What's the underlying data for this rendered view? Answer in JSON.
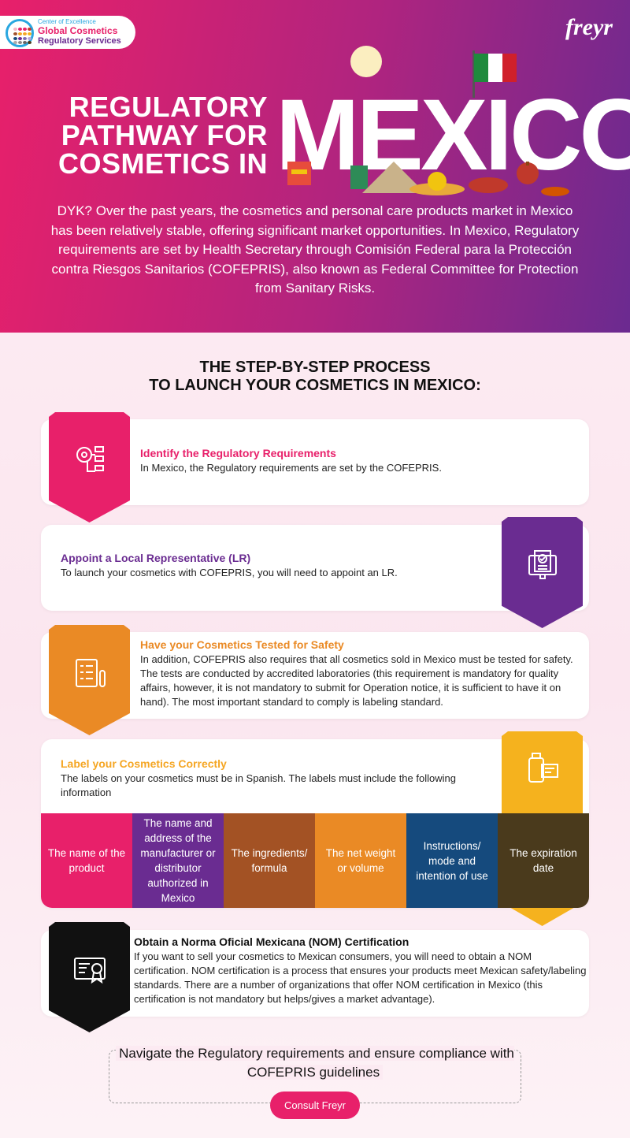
{
  "header": {
    "logo": {
      "kicker": "Center of Excellence",
      "line1": "Global Cosmetics",
      "line2": "Regulatory Services"
    },
    "brand": "freyr",
    "title_lines": [
      "REGULATORY",
      "PATHWAY FOR",
      "COSMETICS IN"
    ],
    "country": "MEXICO",
    "intro": "DYK? Over the past years, the cosmetics and personal care products market in Mexico has been relatively stable, offering significant market opportunities. In Mexico, Regulatory requirements are set by Health Secretary through Comisión Federal para la Protección contra Riesgos Sanitarios (COFEPRIS), also known as Federal Committee for Protection from Sanitary Risks."
  },
  "section": {
    "heading_lines": [
      "THE STEP-BY-STEP PROCESS",
      "TO LAUNCH YOUR COSMETICS IN MEXICO:"
    ]
  },
  "steps": [
    {
      "title": "Identify the Regulatory Requirements",
      "desc": "In Mexico, the Regulatory requirements are set by the COFEPRIS.",
      "color": "#e8206a",
      "icon": "settings-flow-icon"
    },
    {
      "title": "Appoint a Local Representative (LR)",
      "desc": "To launch your cosmetics with COFEPRIS, you will need to appoint an LR.",
      "color": "#6a2c91",
      "icon": "document-check-icon"
    },
    {
      "title": "Have your Cosmetics Tested for Safety",
      "desc": "In addition, COFEPRIS also requires that all cosmetics sold in Mexico must be tested for safety. The tests are conducted by accredited laboratories (this requirement is mandatory for quality affairs, however, it is not mandatory to submit for Operation notice, it is sufficient to have it on hand). The most important standard to comply is labeling standard.",
      "color": "#ea8a25",
      "icon": "clipboard-test-tube-icon"
    },
    {
      "title": "Label your Cosmetics Correctly",
      "desc": "The labels on your cosmetics must be in Spanish. The labels must include the following information",
      "color": "#f5b21e",
      "icon": "label-bottle-icon"
    },
    {
      "title": "Obtain a Norma Oficial Mexicana (NOM) Certification",
      "desc": "If you want to sell your cosmetics to Mexican consumers, you will need to obtain a NOM certification. NOM certification is a process that ensures your products meet Mexican safety/labeling standards. There are a number of organizations that offer NOM certification in Mexico (this certification is not mandatory but helps/gives a market advantage).",
      "color": "#111111",
      "icon": "certificate-icon"
    }
  ],
  "label_items": [
    {
      "text": "The name of the product",
      "color": "#e8206a"
    },
    {
      "text": "The name and address of the manufacturer or distributor authorized in Mexico",
      "color": "#6a2c91"
    },
    {
      "text": "The ingredients/ formula",
      "color": "#a35224"
    },
    {
      "text": "The net weight or volume",
      "color": "#ea8a25"
    },
    {
      "text": "Instructions/ mode and intention of use",
      "color": "#154a7d"
    },
    {
      "text": "The expiration date",
      "color": "#4a3a1c"
    }
  ],
  "cta": {
    "text": "Navigate the Regulatory requirements and ensure compliance with COFEPRIS guidelines",
    "button": "Consult Freyr"
  }
}
